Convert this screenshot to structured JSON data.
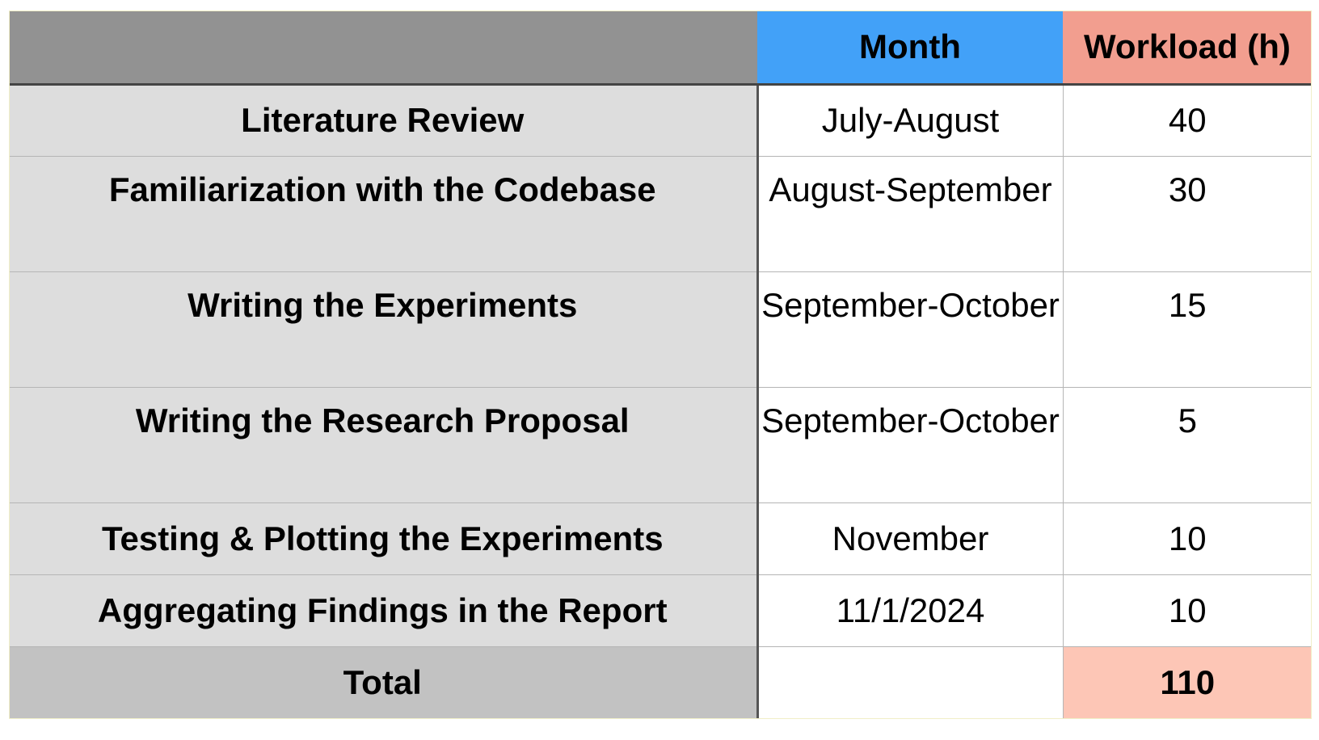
{
  "header": {
    "task": "",
    "month": "Month",
    "workload": "Workload (h)"
  },
  "rows": [
    {
      "task": "Literature Review",
      "month": "July-August",
      "workload": "40"
    },
    {
      "task": "Familiarization with the Codebase",
      "month": "August-September",
      "workload": "30"
    },
    {
      "task": "Writing the Experiments",
      "month": "September-October",
      "workload": "15"
    },
    {
      "task": "Writing the Research Proposal",
      "month": "September-October",
      "workload": "5"
    },
    {
      "task": "Testing & Plotting the Experiments",
      "month": "November",
      "workload": "10"
    },
    {
      "task": "Aggregating Findings in the Report",
      "month": "11/1/2024",
      "workload": "10"
    }
  ],
  "total": {
    "label": "Total",
    "month": "",
    "workload": "110"
  },
  "colors": {
    "header_blank": "#929292",
    "header_month": "#42a1f8",
    "header_workload": "#f29e8f",
    "task_cell": "#dddddd",
    "total_label": "#c2c2c2",
    "total_value": "#fdc6b6"
  }
}
